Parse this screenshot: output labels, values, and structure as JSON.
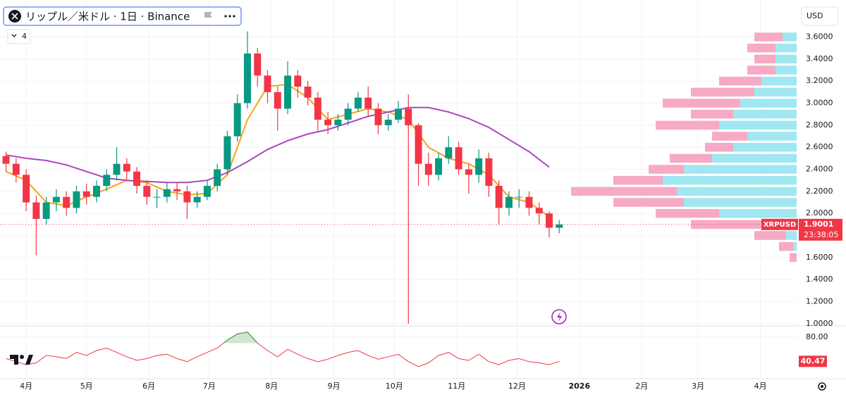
{
  "chart_data": {
    "type": "candlestick",
    "title": "リップル／米ドル · 1日 · Binance",
    "currency": "USD",
    "indicator_count": 4,
    "symbol": "XRPUSD",
    "countdown": "23:38:05",
    "up_color": "#089981",
    "down_color": "#f23645",
    "grid": true,
    "x": [
      -10,
      -5,
      0,
      5,
      10,
      15,
      20,
      25,
      30,
      35,
      40,
      45,
      50,
      55,
      60,
      65,
      70,
      75,
      80,
      85,
      90,
      95,
      100,
      105,
      110,
      115,
      120,
      125,
      130,
      135,
      140,
      145,
      150,
      155,
      160,
      165,
      170,
      175,
      180,
      185,
      190,
      195,
      200,
      205,
      210,
      215,
      220,
      225,
      230,
      235,
      240,
      245,
      250,
      255,
      260,
      265
    ],
    "open": [
      2.52,
      2.45,
      2.35,
      2.1,
      1.95,
      2.1,
      2.15,
      2.05,
      2.2,
      2.15,
      2.25,
      2.35,
      2.45,
      2.38,
      2.25,
      2.15,
      2.15,
      2.22,
      2.2,
      2.1,
      2.15,
      2.25,
      2.4,
      2.7,
      3.0,
      3.45,
      3.25,
      3.1,
      2.95,
      3.25,
      3.15,
      3.05,
      2.85,
      2.8,
      2.85,
      2.95,
      3.05,
      2.95,
      2.8,
      2.85,
      2.95,
      2.8,
      2.45,
      2.35,
      2.5,
      2.6,
      2.4,
      2.35,
      2.5,
      2.25,
      2.05,
      2.15,
      2.15,
      2.05,
      2.0,
      1.87
    ],
    "high": [
      2.56,
      2.5,
      2.4,
      2.16,
      2.15,
      2.22,
      2.2,
      2.25,
      2.27,
      2.3,
      2.4,
      2.6,
      2.5,
      2.42,
      2.3,
      2.22,
      2.28,
      2.28,
      2.25,
      2.2,
      2.3,
      2.45,
      2.75,
      3.08,
      3.65,
      3.5,
      3.3,
      3.15,
      3.38,
      3.3,
      3.2,
      3.1,
      2.92,
      2.9,
      3.0,
      3.1,
      3.15,
      3.0,
      2.9,
      3.02,
      3.08,
      2.82,
      2.55,
      2.55,
      2.7,
      2.65,
      2.45,
      2.58,
      2.55,
      2.3,
      2.2,
      2.22,
      2.2,
      2.1,
      2.02,
      1.94
    ],
    "low": [
      2.38,
      2.28,
      2.02,
      1.62,
      1.9,
      2.02,
      1.98,
      2.0,
      2.08,
      2.1,
      2.2,
      2.3,
      2.3,
      2.18,
      2.08,
      2.05,
      2.1,
      2.12,
      1.95,
      2.05,
      2.12,
      2.2,
      2.35,
      2.65,
      2.95,
      3.15,
      3.0,
      2.75,
      2.9,
      3.05,
      2.98,
      2.75,
      2.72,
      2.75,
      2.8,
      2.92,
      2.88,
      2.72,
      2.75,
      2.82,
      1.0,
      2.25,
      2.25,
      2.3,
      2.45,
      2.35,
      2.18,
      2.28,
      2.15,
      1.9,
      1.98,
      2.05,
      1.98,
      1.9,
      1.78,
      1.82
    ],
    "close": [
      2.45,
      2.35,
      2.1,
      1.95,
      2.1,
      2.15,
      2.05,
      2.2,
      2.15,
      2.25,
      2.35,
      2.45,
      2.38,
      2.25,
      2.15,
      2.15,
      2.22,
      2.2,
      2.1,
      2.15,
      2.25,
      2.4,
      2.7,
      3.0,
      3.45,
      3.25,
      3.1,
      2.95,
      3.25,
      3.15,
      3.05,
      2.85,
      2.8,
      2.85,
      2.95,
      3.05,
      2.95,
      2.8,
      2.85,
      2.95,
      2.8,
      2.45,
      2.35,
      2.5,
      2.6,
      2.4,
      2.35,
      2.5,
      2.25,
      2.05,
      2.15,
      2.15,
      2.05,
      2.0,
      1.87,
      1.9001
    ],
    "ma_x": [
      -10,
      0,
      10,
      20,
      30,
      40,
      50,
      60,
      70,
      80,
      90,
      100,
      110,
      120,
      130,
      140,
      150,
      160,
      170,
      180,
      190,
      200,
      210,
      220,
      230,
      240,
      250,
      260
    ],
    "lines": [
      {
        "color": "#f7a21b",
        "values": [
          2.38,
          2.3,
          2.1,
          2.07,
          2.15,
          2.22,
          2.3,
          2.28,
          2.2,
          2.17,
          2.18,
          2.35,
          2.85,
          3.15,
          3.17,
          3.05,
          2.85,
          2.9,
          2.95,
          2.92,
          2.85,
          2.6,
          2.5,
          2.45,
          2.35,
          2.15,
          2.1,
          1.97
        ]
      },
      {
        "color": "#ab47bc",
        "values": [
          2.53,
          2.5,
          2.48,
          2.44,
          2.38,
          2.32,
          2.3,
          2.29,
          2.28,
          2.28,
          2.3,
          2.37,
          2.47,
          2.58,
          2.66,
          2.72,
          2.76,
          2.82,
          2.88,
          2.92,
          2.96,
          2.96,
          2.92,
          2.86,
          2.78,
          2.67,
          2.56,
          2.42
        ]
      }
    ],
    "xlim": [
      -13,
      383
    ],
    "xticks": [
      {
        "value": 0,
        "label": "4月"
      },
      {
        "value": 30,
        "label": "5月"
      },
      {
        "value": 61,
        "label": "6月"
      },
      {
        "value": 91,
        "label": "7月"
      },
      {
        "value": 122,
        "label": "8月"
      },
      {
        "value": 153,
        "label": "9月"
      },
      {
        "value": 183,
        "label": "10月"
      },
      {
        "value": 214,
        "label": "11月"
      },
      {
        "value": 244,
        "label": "12月"
      },
      {
        "value": 275,
        "label": "2026"
      },
      {
        "value": 306,
        "label": "2月"
      },
      {
        "value": 334,
        "label": "3月"
      },
      {
        "value": 365,
        "label": "4月"
      }
    ],
    "ylim": [
      0.98,
      3.68
    ],
    "yticks": [
      {
        "value": 1.0,
        "label": "1.0000"
      },
      {
        "value": 1.2,
        "label": "1.2000"
      },
      {
        "value": 1.4,
        "label": "1.4000"
      },
      {
        "value": 1.6,
        "label": "1.6000"
      },
      {
        "value": 1.8,
        "label": "1.8000"
      },
      {
        "value": 2.0,
        "label": "2.0000"
      },
      {
        "value": 2.2,
        "label": "2.2000"
      },
      {
        "value": 2.4,
        "label": "2.4000"
      },
      {
        "value": 2.6,
        "label": "2.6000"
      },
      {
        "value": 2.8,
        "label": "2.8000"
      },
      {
        "value": 3.0,
        "label": "3.0000"
      },
      {
        "value": 3.2,
        "label": "3.2000"
      },
      {
        "value": 3.4,
        "label": "3.4000"
      },
      {
        "value": 3.6,
        "label": "3.6000"
      }
    ],
    "volume_profile": {
      "up_color": "#8fe3ef",
      "down_color": "#f59bbb",
      "levels": [
        1.6,
        1.7,
        1.8,
        1.9,
        2.0,
        2.1,
        2.2,
        2.3,
        2.4,
        2.5,
        2.6,
        2.7,
        2.8,
        2.9,
        3.0,
        3.1,
        3.2,
        3.3,
        3.4,
        3.5,
        3.6
      ],
      "up": [
        0,
        5,
        15,
        40,
        110,
        160,
        170,
        190,
        160,
        120,
        90,
        70,
        110,
        90,
        80,
        60,
        50,
        30,
        30,
        30,
        20
      ],
      "down": [
        10,
        20,
        45,
        110,
        90,
        100,
        150,
        70,
        50,
        60,
        40,
        50,
        90,
        60,
        110,
        90,
        60,
        40,
        30,
        40,
        40
      ]
    },
    "rsi": {
      "color": "#f23645",
      "overbought_color": "#43a047",
      "overbought": 70,
      "ylim": [
        10,
        90
      ],
      "yticks": [
        {
          "value": 80,
          "label": "80.00"
        }
      ],
      "values": [
        45,
        40,
        35,
        38,
        50,
        48,
        45,
        55,
        50,
        58,
        62,
        55,
        48,
        42,
        45,
        50,
        52,
        45,
        40,
        48,
        55,
        62,
        75,
        85,
        88,
        70,
        58,
        48,
        60,
        52,
        45,
        40,
        44,
        50,
        55,
        58,
        50,
        44,
        48,
        52,
        40,
        32,
        38,
        50,
        55,
        45,
        42,
        52,
        40,
        35,
        42,
        45,
        40,
        38,
        35,
        40.47
      ]
    }
  }
}
